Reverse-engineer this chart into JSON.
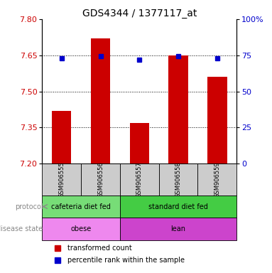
{
  "title": "GDS4344 / 1377117_at",
  "samples": [
    "GSM906555",
    "GSM906556",
    "GSM906557",
    "GSM906558",
    "GSM906559"
  ],
  "bar_values": [
    7.42,
    7.72,
    7.37,
    7.65,
    7.56
  ],
  "dot_values_left": [
    7.637,
    7.645,
    7.632,
    7.645,
    7.638
  ],
  "ylim_left": [
    7.2,
    7.8
  ],
  "ylim_right": [
    0,
    100
  ],
  "yticks_left": [
    7.2,
    7.35,
    7.5,
    7.65,
    7.8
  ],
  "yticks_right": [
    0,
    25,
    50,
    75,
    100
  ],
  "bar_color": "#cc0000",
  "dot_color": "#0000cc",
  "bar_bottom": 7.2,
  "protocol_labels": [
    "cafeteria diet fed",
    "standard diet fed"
  ],
  "protocol_colors": [
    "#77dd77",
    "#44cc44"
  ],
  "disease_labels": [
    "obese",
    "lean"
  ],
  "disease_colors": [
    "#ee88ee",
    "#cc44cc"
  ],
  "label_protocol": "protocol",
  "label_disease": "disease state",
  "legend_red": "transformed count",
  "legend_blue": "percentile rank within the sample",
  "tick_color_left": "#cc0000",
  "tick_color_right": "#0000cc",
  "sample_bg": "#cccccc",
  "background_color": "#ffffff"
}
